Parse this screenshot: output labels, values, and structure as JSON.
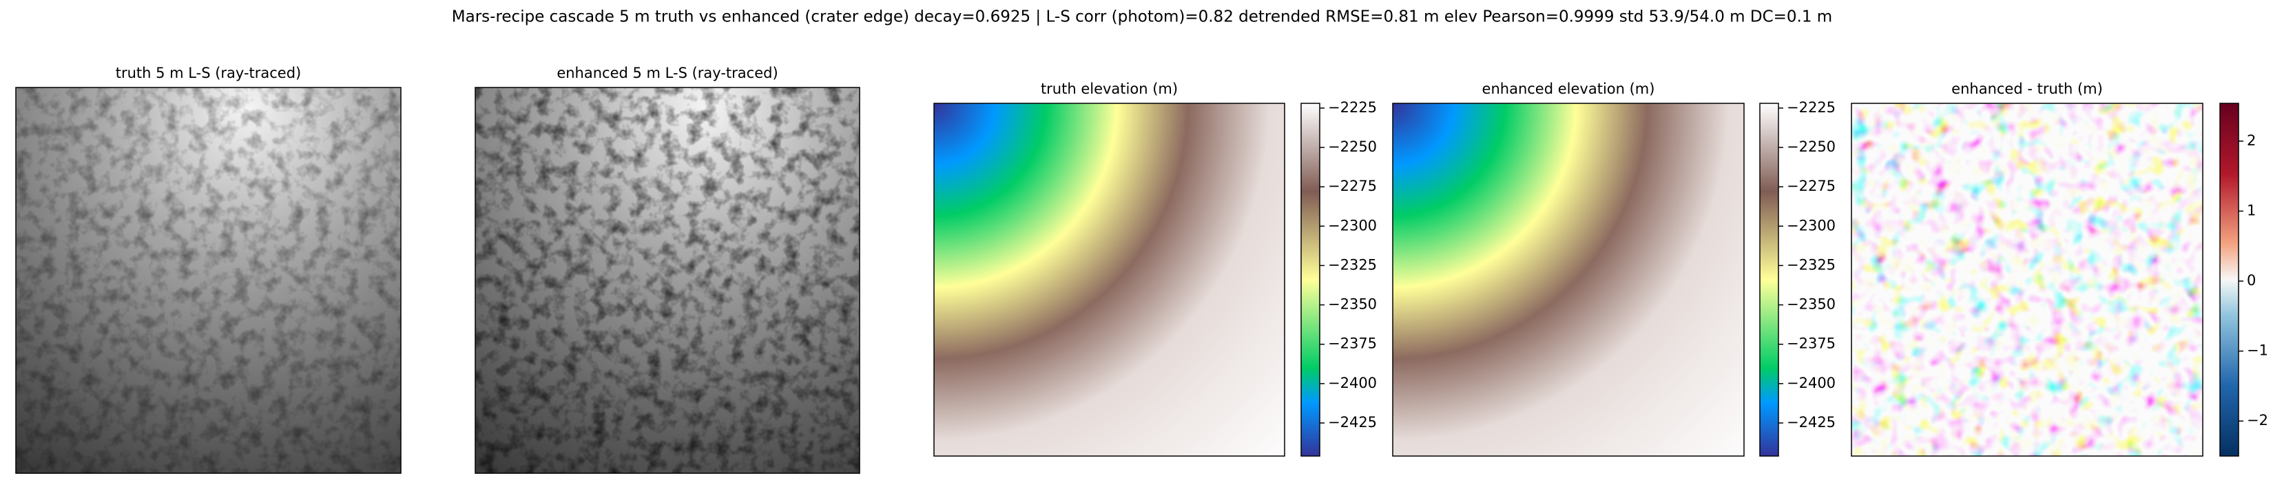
{
  "title": "Mars-recipe cascade 5 m truth vs enhanced (crater edge) decay=0.6925  |  L-S corr (photom)=0.82  detrended RMSE=0.81 m  elev Pearson=0.9999  std 53.9/54.0 m  DC=0.1 m",
  "chart_data": [
    {
      "type": "image",
      "title": "truth 5 m L-S (ray-traced)",
      "colormap": "gray"
    },
    {
      "type": "image",
      "title": "enhanced 5 m L-S (ray-traced)",
      "colormap": "gray"
    },
    {
      "type": "image",
      "title": "truth elevation (m)",
      "colormap": "terrain",
      "colorbar": {
        "ylim": [
          -2446,
          -2222
        ],
        "yticks": [
          {
            "value": -2225,
            "label": "−2225"
          },
          {
            "value": -2250,
            "label": "−2250"
          },
          {
            "value": -2275,
            "label": "−2275"
          },
          {
            "value": -2300,
            "label": "−2300"
          },
          {
            "value": -2325,
            "label": "−2325"
          },
          {
            "value": -2350,
            "label": "−2350"
          },
          {
            "value": -2375,
            "label": "−2375"
          },
          {
            "value": -2400,
            "label": "−2400"
          },
          {
            "value": -2425,
            "label": "−2425"
          }
        ]
      }
    },
    {
      "type": "image",
      "title": "enhanced elevation (m)",
      "colormap": "terrain",
      "colorbar": {
        "ylim": [
          -2446,
          -2222
        ],
        "yticks": [
          {
            "value": -2225,
            "label": "−2225"
          },
          {
            "value": -2250,
            "label": "−2250"
          },
          {
            "value": -2275,
            "label": "−2275"
          },
          {
            "value": -2300,
            "label": "−2300"
          },
          {
            "value": -2325,
            "label": "−2325"
          },
          {
            "value": -2350,
            "label": "−2350"
          },
          {
            "value": -2375,
            "label": "−2375"
          },
          {
            "value": -2400,
            "label": "−2400"
          },
          {
            "value": -2425,
            "label": "−2425"
          }
        ]
      }
    },
    {
      "type": "image",
      "title": "enhanced - truth (m)",
      "colormap": "RdBu_r",
      "colorbar": {
        "ylim": [
          -2.5,
          2.54
        ],
        "yticks": [
          {
            "value": -2,
            "label": "−2"
          },
          {
            "value": -1,
            "label": "−1"
          },
          0,
          1,
          2
        ]
      }
    }
  ]
}
